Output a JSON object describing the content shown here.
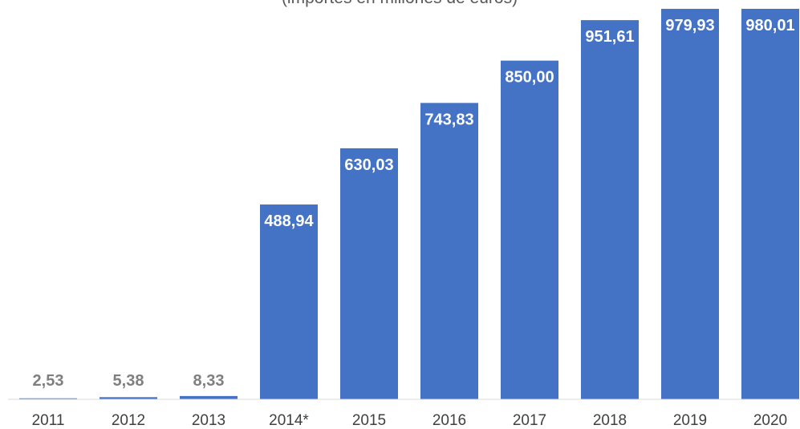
{
  "chart_data": {
    "type": "bar",
    "subtitle": "(importes en millones de euros)",
    "categories": [
      "2011",
      "2012",
      "2013",
      "2014*",
      "2015",
      "2016",
      "2017",
      "2018",
      "2019",
      "2020"
    ],
    "values": [
      2.53,
      5.38,
      8.33,
      488.94,
      630.03,
      743.83,
      850.0,
      951.61,
      979.93,
      980.01
    ],
    "value_labels": [
      "2,53",
      "5,38",
      "8,33",
      "488,94",
      "630,03",
      "743,83",
      "850,00",
      "951,61",
      "979,93",
      "980,01"
    ],
    "ylim": [
      0,
      980.01
    ],
    "grid": false,
    "legend": "none",
    "colors": {
      "bar": "#4472C4",
      "label_inside": "#FFFFFF",
      "label_outside": "#7F7F7F",
      "axis": "#D9D9D9"
    }
  }
}
